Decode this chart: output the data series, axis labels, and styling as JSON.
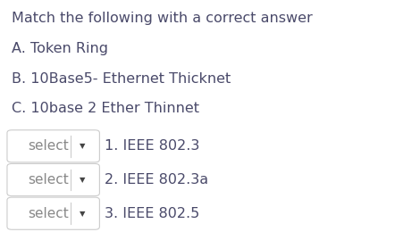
{
  "title": "Match the following with a correct answer",
  "options": [
    "A. Token Ring",
    "B. 10Base5- Ethernet Thicknet",
    "C. 10base 2 Ether Thinnet"
  ],
  "dropdowns": [
    "1. IEEE 802.3",
    "2. IEEE 802.3a",
    "3. IEEE 802.5"
  ],
  "title_color": "#4a4a6a",
  "option_color": "#4a4a6a",
  "dropdown_label_color": "#4a4a6a",
  "select_text_color": "#888888",
  "bg_color": "#ffffff",
  "box_fill": "#ffffff",
  "box_edge": "#cccccc",
  "divider_color": "#cccccc",
  "arrow_color": "#444444",
  "title_fontsize": 11.5,
  "option_fontsize": 11.5,
  "dropdown_fontsize": 11.5,
  "select_fontsize": 11.0,
  "figwidth": 4.42,
  "figheight": 2.6,
  "dpi": 100
}
